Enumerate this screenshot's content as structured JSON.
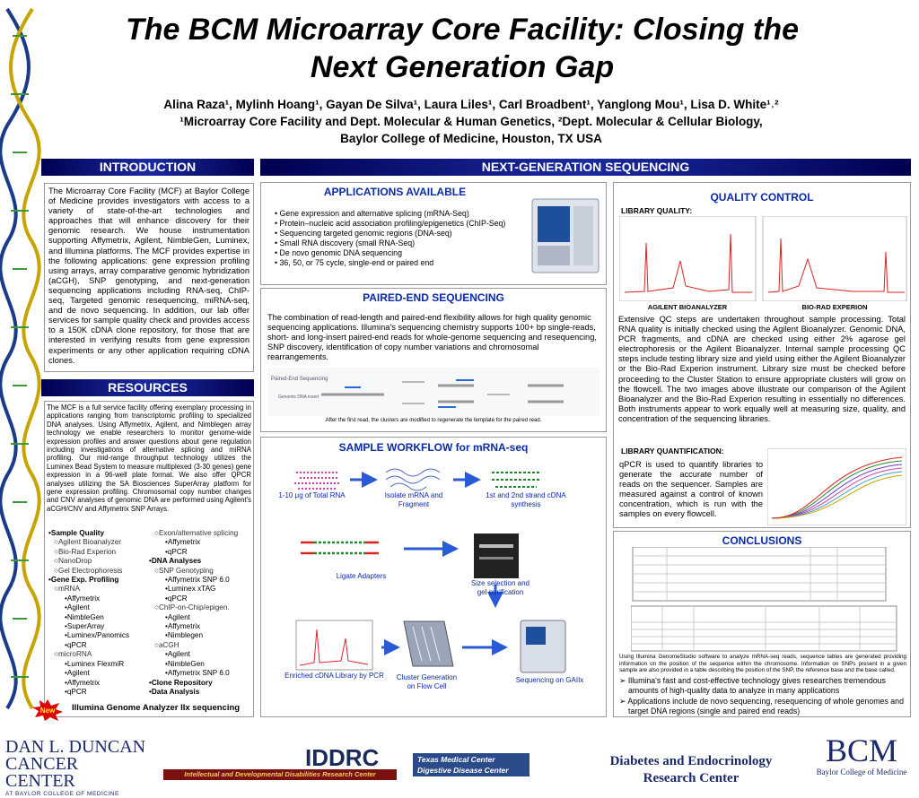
{
  "header": {
    "title_line1": "The BCM Microarray Core Facility: Closing the",
    "title_line2": "Next Generation Gap",
    "authors": "Alina Raza¹, Mylinh Hoang¹, Gayan De Silva¹, Laura Liles¹, Carl Broadbent¹, Yanglong Mou¹, Lisa D. White¹˒²",
    "affiliation1": "¹Microarray Core Facility and Dept. Molecular & Human Genetics, ²Dept. Molecular & Cellular Biology,",
    "affiliation2": "Baylor College of Medicine, Houston, TX USA"
  },
  "introduction": {
    "heading": "INTRODUCTION",
    "text": "The Microarray Core Facility (MCF) at Baylor College of Medicine provides investigators with access to a variety of state-of-the-art technologies and approaches that will enhance discovery for their genomic research. We house instrumentation supporting Affymetrix, Agilent, NimbleGen, Luminex, and Illumina platforms. The MCF provides expertise in the following applications: gene expression profiling using arrays, array comparative genomic hybridization (aCGH), SNP genotyping, and next-generation sequencing applications including RNA-seq, ChIP-seq, Targeted genomic resequencing, miRNA-seq, and de novo sequencing. In addition, our lab offer services for sample quality check and provides access to a 150K cDNA clone repository, for those that are interested in verifying results from gene expression experiments or any other application requiring cDNA clones."
  },
  "resources": {
    "heading": "RESOURCES",
    "text": "The MCF is a full service facility offering exemplary processing in applications ranging from transcriptomic profiling to specialized DNA analyses. Using Affymetrix, Agilent, and Nimblegen array technology we enable researchers to monitor genome-wide expression profiles and answer questions about gene regulation including investigations of alternative splicing and miRNA profiling. Our mid-range throughput technology utilizes the Luminex Bead System to measure multiplexed (3-30 genes) gene expression in a 96-well plate format. We also offer QPCR analyses utilizing the SA Biosciences SuperArray platform for gene expression profiling. Chromosomal copy number changes and CNV analyses of genomic DNA are performed using Agilent's aCGH/CNV and Affymetrix SNP Arrays.",
    "list_left": [
      "•Sample Quality",
      "○Agilent Bioanalyzer",
      "○Bio-Rad Experion",
      "○NanoDrop",
      "○Gel Electrophoresis",
      "•Gene Exp. Profiling",
      "○mRNA",
      "•Affymetrix",
      "•Agilent",
      "•NimbleGen",
      "•SuperArray",
      "•Luminex/Panomics",
      "•qPCR",
      "○microRNA",
      "•Luminex FlexmiR",
      "•Agilent",
      "•Affymetrix",
      "•qPCR"
    ],
    "list_right": [
      "○Exon/alternative splicing",
      "•Affymetrix",
      "•qPCR",
      "•DNA Analyses",
      "○SNP Genotyping",
      "•Affymetrix SNP 6.0",
      "•Luminex xTAG",
      "•qPCR",
      "○ChIP-on-Chip/epigen.",
      "•Agilent",
      "•Affymetrix",
      "•Nimblegen",
      "○aCGH",
      "•Agilent",
      "•NimbleGen",
      "•Affymetrix SNP 6.0",
      "•Clone Repository",
      "•Data Analysis"
    ],
    "new_badge": "New",
    "new_item": "Illumina Genome Analyzer IIx sequencing"
  },
  "ngs": {
    "heading": "NEXT-GENERATION SEQUENCING",
    "applications": {
      "heading": "APPLICATIONS AVAILABLE",
      "items": [
        "Gene expression and alternative splicing (mRNA-Seq)",
        "Protein–nucleic acid association profiling/epigenetics (ChIP-Seq)",
        "Sequencing targeted genomic regions (DNA-seq)",
        "Small RNA discovery (small RNA-Seq)",
        "De novo genomic DNA sequencing",
        "36, 50, or 75 cycle, single-end or paired end"
      ]
    },
    "paired_end": {
      "heading": "PAIRED-END SEQUENCING",
      "text": "The combination of read-length and paired-end flexibility allows for high quality genomic sequencing applications. Illumina's sequencing chemistry supports 100+ bp single-reads, short- and long-insert paired-end reads for whole-genome sequencing and resequencing, SNP discovery, identification of copy number variations and chromosomal rearrangements.",
      "figure_title": "Paired-End Sequencing",
      "figure_label": "Genomic DNA insert",
      "caption": "After the first read, the clusters are modified to regenerate the template for the paired read."
    },
    "workflow": {
      "heading": "SAMPLE WORKFLOW for mRNA-seq",
      "steps": [
        "1-10 μg of Total RNA",
        "Isolate mRNA and Fragment",
        "1st and 2nd strand cDNA synthesis",
        "Ligate Adapters",
        "Size selection and gel purification",
        "Enriched cDNA Library by PCR",
        "Cluster Generation on Flow Cell",
        "Sequencing on GAIIx"
      ]
    },
    "quality_control": {
      "heading": "QUALITY CONTROL",
      "library_quality": "LIBRARY QUALITY:",
      "label_agilent": "AGILENT BIOANALYZER",
      "label_biorad": "BIO-RAD EXPERION",
      "text": "Extensive QC steps are undertaken throughout sample processing. Total RNA quality is initially checked using the Agilent Bioanalyzer. Genomic DNA, PCR fragments, and cDNA are checked using either 2% agarose gel electrophoresis or the Agilent Bioanalyzer. Internal sample processing QC steps include testing library size and yield using either the Agilent Bioanalyzer or the Bio-Rad Experion instrument. Library size must be checked before proceeding to the Cluster Station to ensure appropriate clusters will grow on the flowcell. The two images above illustrate our comparison of the Agilent Bioanalyzer and the Bio-Rad Experion resulting in essentially no differences. Both instruments appear to work equally well at measuring size, quality, and concentration of the sequencing libraries.",
      "library_quantification": "LIBRARY QUANTIFICATION:",
      "quant_text": "qPCR is used to quantify libraries to generate the accurate number of reads on the sequencer. Samples are measured against a control of known concentration, which is run with the samples on every flowcell."
    },
    "conclusions": {
      "heading": "CONCLUSIONS",
      "caption": "Using Illumina GenomeStudio software to analyze mRNA-seq reads, sequence tables are generated providing information on the position of the sequence within the chromosome. Information on SNPs present in a given sample are also provided in a table describing the position of the SNP, the reference base and the base called.",
      "items": [
        "Illumina's fast and cost-effective technology gives researches tremendous amounts of high-quality data to analyze in many applications",
        "Applications include de novo sequencing, resequencing of whole genomes and target DNA regions (single and paired end reads)"
      ]
    }
  },
  "footer": {
    "duncan_line1": "DAN L. DUNCAN",
    "duncan_line2": "CANCER CENTER",
    "duncan_line3": "AT BAYLOR COLLEGE OF MEDICINE",
    "iddrc": "IDDRC",
    "iddrc_full": "Intellectual and Developmental Disabilities Research Center",
    "tmc_line1": "Texas Medical Center",
    "tmc_line2": "Digestive Disease Center",
    "diabetes_line1": "Diabetes and Endocrinology",
    "diabetes_line2": "Research Center",
    "bcm": "BCM",
    "bcm_full": "Baylor College of Medicine"
  }
}
